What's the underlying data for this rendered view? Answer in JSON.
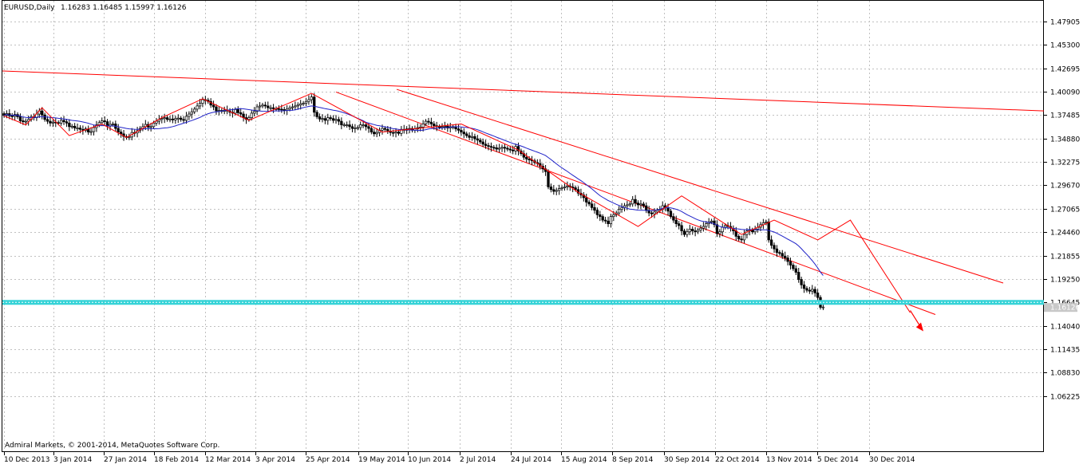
{
  "chart_data": {
    "type": "candlestick",
    "title": "EURUSD,Daily",
    "ohlc_readout": "1.16283 1.16485 1.15997 1.16126",
    "copyright": "Admiral Markets, © 2001-2014, MetaQuotes Software Corp.",
    "current_price_label": "1.16126",
    "ylim": [
      1.0,
      1.502
    ],
    "y_ticks": [
      "1.47905",
      "1.45300",
      "1.42695",
      "1.40090",
      "1.37485",
      "1.34880",
      "1.32275",
      "1.29670",
      "1.27065",
      "1.24460",
      "1.21855",
      "1.19250",
      "1.16645",
      "1.14040",
      "1.11435",
      "1.08830",
      "1.06225"
    ],
    "x_ticks": [
      "10 Dec 2013",
      "3 Jan 2014",
      "27 Jan 2014",
      "18 Feb 2014",
      "12 Mar 2014",
      "3 Apr 2014",
      "25 Apr 2014",
      "19 May 2014",
      "10 Jun 2014",
      "2 Jul 2014",
      "24 Jul 2014",
      "15 Aug 2014",
      "8 Sep 2014",
      "30 Sep 2014",
      "22 Oct 2014",
      "13 Nov 2014",
      "5 Dec 2014",
      "30 Dec 2014"
    ],
    "closes": [
      1.3745,
      1.3765,
      1.374,
      1.3735,
      1.3755,
      1.373,
      1.3685,
      1.3675,
      1.368,
      1.37,
      1.373,
      1.372,
      1.376,
      1.3795,
      1.375,
      1.37,
      1.368,
      1.366,
      1.367,
      1.3665,
      1.366,
      1.369,
      1.3675,
      1.366,
      1.362,
      1.3625,
      1.3605,
      1.3605,
      1.359,
      1.358,
      1.3595,
      1.356,
      1.3565,
      1.361,
      1.364,
      1.3665,
      1.3685,
      1.3675,
      1.3625,
      1.3645,
      1.365,
      1.36,
      1.356,
      1.354,
      1.351,
      1.35,
      1.3505,
      1.3555,
      1.355,
      1.3575,
      1.36,
      1.362,
      1.3645,
      1.3615,
      1.362,
      1.366,
      1.368,
      1.37,
      1.371,
      1.372,
      1.37,
      1.3705,
      1.3695,
      1.371,
      1.3715,
      1.37,
      1.369,
      1.3735,
      1.376,
      1.3785,
      1.3815,
      1.385,
      1.388,
      1.392,
      1.3915,
      1.39,
      1.386,
      1.384,
      1.3795,
      1.38,
      1.379,
      1.3805,
      1.3795,
      1.378,
      1.377,
      1.381,
      1.3775,
      1.376,
      1.372,
      1.37,
      1.372,
      1.377,
      1.379,
      1.384,
      1.385,
      1.386,
      1.385,
      1.383,
      1.383,
      1.382,
      1.382,
      1.3815,
      1.381,
      1.38,
      1.3815,
      1.383,
      1.384,
      1.385,
      1.386,
      1.3875,
      1.388,
      1.39,
      1.392,
      1.395,
      1.378,
      1.373,
      1.3705,
      1.371,
      1.369,
      1.372,
      1.371,
      1.369,
      1.37,
      1.368,
      1.364,
      1.364,
      1.364,
      1.362,
      1.36,
      1.3605,
      1.361,
      1.364,
      1.364,
      1.362,
      1.36,
      1.356,
      1.354,
      1.3555,
      1.358,
      1.36,
      1.359,
      1.357,
      1.3555,
      1.355,
      1.356,
      1.3545,
      1.359,
      1.358,
      1.3595,
      1.36,
      1.358,
      1.3595,
      1.361,
      1.3615,
      1.365,
      1.368,
      1.367,
      1.365,
      1.363,
      1.362,
      1.3615,
      1.362,
      1.3625,
      1.3605,
      1.362,
      1.3615,
      1.3595,
      1.358,
      1.356,
      1.354,
      1.352,
      1.35,
      1.351,
      1.3485,
      1.347,
      1.345,
      1.3425,
      1.341,
      1.34,
      1.339,
      1.3385,
      1.337,
      1.338,
      1.339,
      1.338,
      1.337,
      1.336,
      1.335,
      1.34,
      1.335,
      1.332,
      1.328,
      1.326,
      1.325,
      1.324,
      1.322,
      1.321,
      1.318,
      1.315,
      1.312,
      1.295,
      1.292,
      1.29,
      1.291,
      1.293,
      1.294,
      1.295,
      1.296,
      1.295,
      1.294,
      1.292,
      1.288,
      1.286,
      1.283,
      1.278,
      1.276,
      1.272,
      1.269,
      1.264,
      1.262,
      1.258,
      1.257,
      1.254,
      1.262,
      1.264,
      1.266,
      1.27,
      1.272,
      1.274,
      1.275,
      1.276,
      1.281,
      1.277,
      1.275,
      1.276,
      1.274,
      1.269,
      1.266,
      1.265,
      1.267,
      1.269,
      1.27,
      1.274,
      1.272,
      1.268,
      1.262,
      1.258,
      1.254,
      1.252,
      1.246,
      1.242,
      1.245,
      1.248,
      1.246,
      1.245,
      1.247,
      1.249,
      1.251,
      1.254,
      1.256,
      1.257,
      1.253,
      1.243,
      1.245,
      1.25,
      1.252,
      1.251,
      1.249,
      1.246,
      1.24,
      1.237,
      1.236,
      1.242,
      1.246,
      1.247,
      1.245,
      1.248,
      1.25,
      1.253,
      1.255,
      1.256,
      1.236,
      1.23,
      1.226,
      1.222,
      1.221,
      1.218,
      1.216,
      1.212,
      1.208,
      1.204,
      1.2,
      1.192,
      1.186,
      1.182,
      1.18,
      1.179,
      1.181,
      1.177,
      1.172,
      1.161,
      1.1613
    ],
    "series": [
      {
        "name": "Moving Average",
        "color": "#1f22c8"
      },
      {
        "name": "ZigZag",
        "color": "#ff0000"
      }
    ],
    "zigzag_pivots": [
      [
        0,
        1.374
      ],
      [
        8,
        1.364
      ],
      [
        14,
        1.383
      ],
      [
        24,
        1.352
      ],
      [
        36,
        1.365
      ],
      [
        45,
        1.35
      ],
      [
        58,
        1.372
      ],
      [
        73,
        1.393
      ],
      [
        90,
        1.369
      ],
      [
        113,
        1.399
      ],
      [
        139,
        1.356
      ],
      [
        168,
        1.365
      ],
      [
        189,
        1.336
      ],
      [
        211,
        1.289
      ],
      [
        233,
        1.251
      ],
      [
        249,
        1.285
      ],
      [
        271,
        1.242
      ],
      [
        283,
        1.258
      ],
      [
        299,
        1.236
      ],
      [
        311,
        1.258
      ],
      [
        333,
        1.155
      ]
    ],
    "horizontal_level": 1.1665,
    "grid": true,
    "colors": {
      "bull_candle": "#ffffff",
      "bear_candle": "#000000",
      "trendline": "#ff0000",
      "support_band": "#35d3d7",
      "price_tag_bg": "#c8c8c8"
    }
  }
}
